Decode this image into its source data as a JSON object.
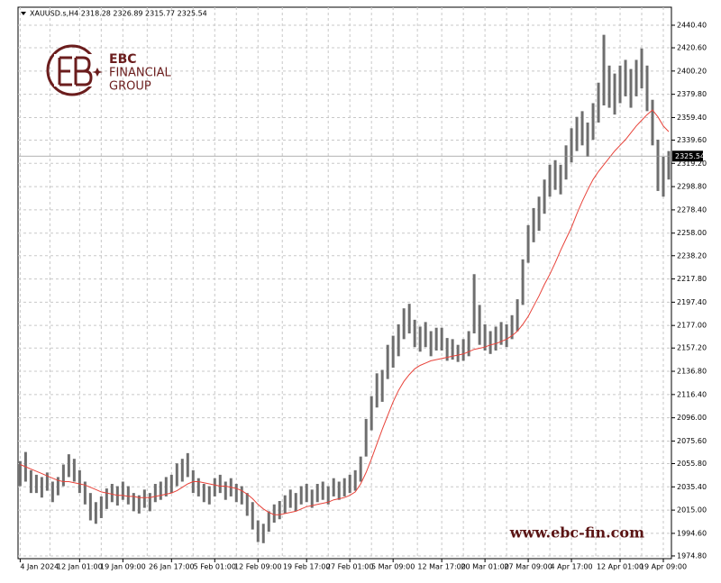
{
  "chart_data": {
    "type": "range_bar",
    "title": "XAUUSD.s,H4  2318.28 2326.89 2315.77 2325.54",
    "logo": {
      "name": "EBC",
      "line1": "FINANCIAL",
      "line2": "GROUP"
    },
    "watermark": "www.ebc-fin.com",
    "color": "#6e6e6e",
    "grid": true,
    "high": [
      2058,
      2066,
      2050,
      2046,
      2044,
      2048,
      2040,
      2044,
      2055,
      2064,
      2060,
      2050,
      2040,
      2030,
      2022,
      2027,
      2034,
      2038,
      2036,
      2040,
      2036,
      2030,
      2028,
      2033,
      2030,
      2038,
      2040,
      2044,
      2046,
      2056,
      2060,
      2065,
      2050,
      2043,
      2038,
      2036,
      2043,
      2046,
      2040,
      2043,
      2038,
      2036,
      2030,
      2022,
      2006,
      2003,
      2014,
      2020,
      2023,
      2028,
      2033,
      2030,
      2036,
      2038,
      2033,
      2038,
      2040,
      2036,
      2043,
      2040,
      2043,
      2046,
      2050,
      2062,
      2095,
      2115,
      2135,
      2138,
      2160,
      2168,
      2178,
      2192,
      2196,
      2182,
      2176,
      2180,
      2172,
      2175,
      2175,
      2166,
      2165,
      2160,
      2165,
      2172,
      2222,
      2195,
      2178,
      2172,
      2176,
      2180,
      2178,
      2186,
      2200,
      2235,
      2265,
      2280,
      2290,
      2305,
      2318,
      2322,
      2318,
      2335,
      2350,
      2360,
      2365,
      2355,
      2372,
      2390,
      2432,
      2405,
      2398,
      2405,
      2410,
      2402,
      2410,
      2420,
      2405,
      2375,
      2340,
      2325,
      2330
    ],
    "low": [
      2036,
      2040,
      2030,
      2030,
      2026,
      2032,
      2022,
      2028,
      2036,
      2044,
      2040,
      2030,
      2020,
      2006,
      2003,
      2008,
      2016,
      2022,
      2019,
      2024,
      2020,
      2014,
      2012,
      2017,
      2014,
      2022,
      2024,
      2027,
      2030,
      2036,
      2040,
      2044,
      2030,
      2027,
      2022,
      2020,
      2027,
      2030,
      2024,
      2027,
      2022,
      2020,
      2010,
      1998,
      1987,
      1986,
      1996,
      2004,
      2007,
      2012,
      2017,
      2014,
      2020,
      2022,
      2017,
      2022,
      2024,
      2020,
      2027,
      2024,
      2027,
      2030,
      2032,
      2040,
      2062,
      2085,
      2105,
      2110,
      2130,
      2140,
      2150,
      2165,
      2170,
      2158,
      2154,
      2158,
      2150,
      2155,
      2155,
      2146,
      2147,
      2145,
      2146,
      2150,
      2170,
      2160,
      2155,
      2152,
      2155,
      2160,
      2158,
      2165,
      2172,
      2195,
      2232,
      2250,
      2260,
      2275,
      2290,
      2296,
      2292,
      2305,
      2320,
      2330,
      2335,
      2325,
      2340,
      2355,
      2370,
      2368,
      2362,
      2372,
      2378,
      2368,
      2378,
      2385,
      2365,
      2335,
      2295,
      2290,
      2305
    ],
    "ma": {
      "color": "#e8433a",
      "values": [
        2055,
        2053,
        2051,
        2049,
        2047,
        2045,
        2043,
        2041,
        2040,
        2040,
        2039,
        2038,
        2037,
        2035,
        2033,
        2031,
        2030,
        2029,
        2028,
        2028,
        2027,
        2027,
        2026,
        2026,
        2026,
        2027,
        2028,
        2029,
        2030,
        2032,
        2035,
        2038,
        2040,
        2040,
        2039,
        2038,
        2037,
        2036,
        2036,
        2035,
        2034,
        2032,
        2029,
        2025,
        2020,
        2016,
        2013,
        2011,
        2011,
        2012,
        2013,
        2014,
        2016,
        2018,
        2019,
        2020,
        2021,
        2022,
        2024,
        2025,
        2026,
        2028,
        2031,
        2038,
        2048,
        2060,
        2073,
        2086,
        2098,
        2110,
        2120,
        2128,
        2134,
        2139,
        2142,
        2144,
        2146,
        2147,
        2148,
        2149,
        2150,
        2151,
        2152,
        2154,
        2156,
        2157,
        2158,
        2160,
        2161,
        2163,
        2165,
        2168,
        2172,
        2178,
        2185,
        2194,
        2203,
        2213,
        2222,
        2232,
        2243,
        2253,
        2263,
        2275,
        2286,
        2296,
        2305,
        2312,
        2318,
        2324,
        2330,
        2335,
        2340,
        2346,
        2352,
        2357,
        2362,
        2366,
        2360,
        2352,
        2347
      ]
    },
    "last_price": 2325.54,
    "ylim": [
      1972.4,
      2456.2
    ],
    "yticks": [
      {
        "value": 2440.4,
        "label": "2440.40"
      },
      {
        "value": 2420.6,
        "label": "2420.60"
      },
      {
        "value": 2400.2,
        "label": "2400.20"
      },
      {
        "value": 2379.8,
        "label": "2379.80"
      },
      {
        "value": 2359.4,
        "label": "2359.40"
      },
      {
        "value": 2339.6,
        "label": "2339.60"
      },
      {
        "value": 2319.2,
        "label": "2319.20"
      },
      {
        "value": 2298.8,
        "label": "2298.80"
      },
      {
        "value": 2278.4,
        "label": "2278.40"
      },
      {
        "value": 2258,
        "label": "2258.00"
      },
      {
        "value": 2238.2,
        "label": "2238.20"
      },
      {
        "value": 2217.8,
        "label": "2217.80"
      },
      {
        "value": 2197.4,
        "label": "2197.40"
      },
      {
        "value": 2177,
        "label": "2177.00"
      },
      {
        "value": 2157.2,
        "label": "2157.20"
      },
      {
        "value": 2136.8,
        "label": "2136.80"
      },
      {
        "value": 2116.4,
        "label": "2116.40"
      },
      {
        "value": 2096,
        "label": "2096.00"
      },
      {
        "value": 2075.6,
        "label": "2075.60"
      },
      {
        "value": 2055.8,
        "label": "2055.80"
      },
      {
        "value": 2035.4,
        "label": "2035.40"
      },
      {
        "value": 2015,
        "label": "2015.00"
      },
      {
        "value": 1994.6,
        "label": "1994.60"
      },
      {
        "value": 1974.8,
        "label": "1974.80"
      }
    ],
    "xlim": [
      -0.4,
      120.5
    ],
    "xticks": [
      {
        "value": 0,
        "label": "4 Jan 2024"
      },
      {
        "value": 11,
        "label": "12 Jan 01:00"
      },
      {
        "value": 19,
        "label": "19 Jan 09:00"
      },
      {
        "value": 28,
        "label": "26 Jan 17:00"
      },
      {
        "value": 36,
        "label": "5 Feb 01:00"
      },
      {
        "value": 44,
        "label": "12 Feb 09:00"
      },
      {
        "value": 53,
        "label": "19 Feb 17:00"
      },
      {
        "value": 61,
        "label": "27 Feb 01:00"
      },
      {
        "value": 69,
        "label": "5 Mar 09:00"
      },
      {
        "value": 78,
        "label": "12 Mar 17:00"
      },
      {
        "value": 86,
        "label": "20 Mar 01:00"
      },
      {
        "value": 94,
        "label": "27 Mar 09:00"
      },
      {
        "value": 102,
        "label": "4 Apr 17:00"
      },
      {
        "value": 111,
        "label": "12 Apr 01:00"
      },
      {
        "value": 119,
        "label": "19 Apr 09:00"
      }
    ]
  }
}
